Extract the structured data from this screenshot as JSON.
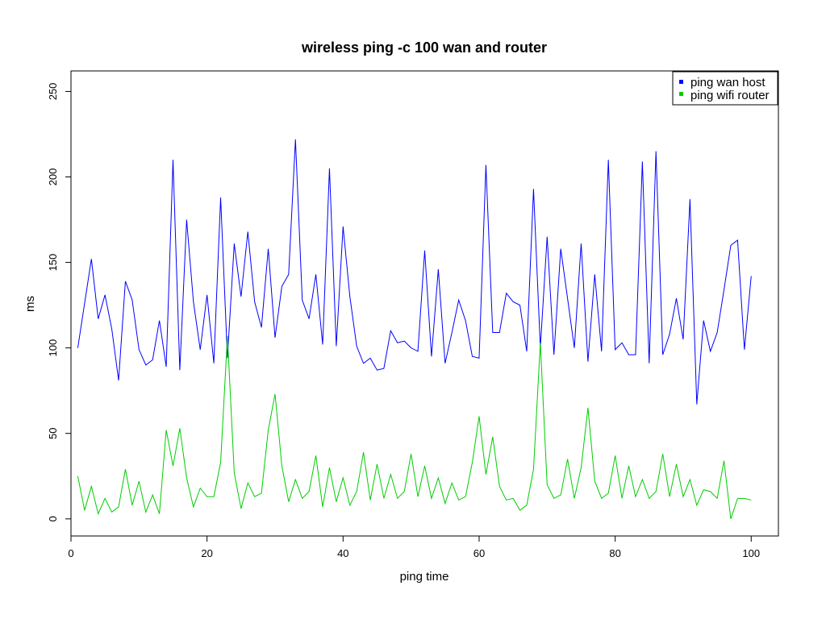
{
  "chart_data": {
    "type": "line",
    "title": "wireless ping -c 100 wan and router",
    "xlabel": "ping time",
    "ylabel": "ms",
    "xlim": [
      0,
      104
    ],
    "ylim": [
      -10,
      262
    ],
    "xticks": [
      0,
      20,
      40,
      60,
      80,
      100
    ],
    "yticks": [
      0,
      50,
      100,
      150,
      200,
      250
    ],
    "grid": false,
    "legend": "top-right",
    "x": [
      1,
      2,
      3,
      4,
      5,
      6,
      7,
      8,
      9,
      10,
      11,
      12,
      13,
      14,
      15,
      16,
      17,
      18,
      19,
      20,
      21,
      22,
      23,
      24,
      25,
      26,
      27,
      28,
      29,
      30,
      31,
      32,
      33,
      34,
      35,
      36,
      37,
      38,
      39,
      40,
      41,
      42,
      43,
      44,
      45,
      46,
      47,
      48,
      49,
      50,
      51,
      52,
      53,
      54,
      55,
      56,
      57,
      58,
      59,
      60,
      61,
      62,
      63,
      64,
      65,
      66,
      67,
      68,
      69,
      70,
      71,
      72,
      73,
      74,
      75,
      76,
      77,
      78,
      79,
      80,
      81,
      82,
      83,
      84,
      85,
      86,
      87,
      88,
      89,
      90,
      91,
      92,
      93,
      94,
      95,
      96,
      97,
      98,
      99,
      100
    ],
    "series": [
      {
        "name": "ping wan host",
        "color": "#0000ff",
        "values": [
          100,
          126,
          152,
          117,
          131,
          111,
          81,
          139,
          128,
          99,
          90,
          93,
          116,
          89,
          210,
          87,
          175,
          127,
          99,
          131,
          91,
          188,
          94,
          161,
          130,
          168,
          127,
          112,
          158,
          106,
          136,
          143,
          222,
          128,
          117,
          143,
          102,
          205,
          101,
          171,
          130,
          101,
          91,
          94,
          87,
          88,
          110,
          103,
          104,
          100,
          98,
          157,
          95,
          146,
          91,
          109,
          128,
          116,
          95,
          94,
          207,
          109,
          109,
          132,
          127,
          125,
          98,
          193,
          100,
          165,
          96,
          158,
          129,
          100,
          161,
          92,
          143,
          98,
          210,
          99,
          103,
          96,
          96,
          209,
          91,
          215,
          96,
          108,
          129,
          105,
          187,
          67,
          116,
          98,
          109,
          134,
          160,
          163,
          99,
          142
        ]
      },
      {
        "name": "ping wifi router",
        "color": "#00cd00",
        "values": [
          25,
          5,
          19,
          3,
          12,
          4,
          7,
          29,
          8,
          22,
          4,
          14,
          3,
          52,
          31,
          53,
          24,
          7,
          18,
          13,
          13,
          33,
          107,
          27,
          6,
          21,
          13,
          15,
          52,
          73,
          31,
          10,
          23,
          12,
          16,
          37,
          7,
          30,
          10,
          24,
          8,
          16,
          39,
          11,
          32,
          12,
          26,
          12,
          16,
          38,
          13,
          31,
          12,
          24,
          9,
          21,
          11,
          13,
          33,
          60,
          26,
          48,
          19,
          11,
          12,
          5,
          8,
          29,
          103,
          20,
          12,
          14,
          35,
          12,
          30,
          65,
          22,
          12,
          15,
          37,
          12,
          31,
          13,
          23,
          12,
          16,
          38,
          13,
          32,
          13,
          23,
          8,
          17,
          16,
          12,
          34,
          0,
          12,
          12,
          11
        ]
      }
    ]
  }
}
